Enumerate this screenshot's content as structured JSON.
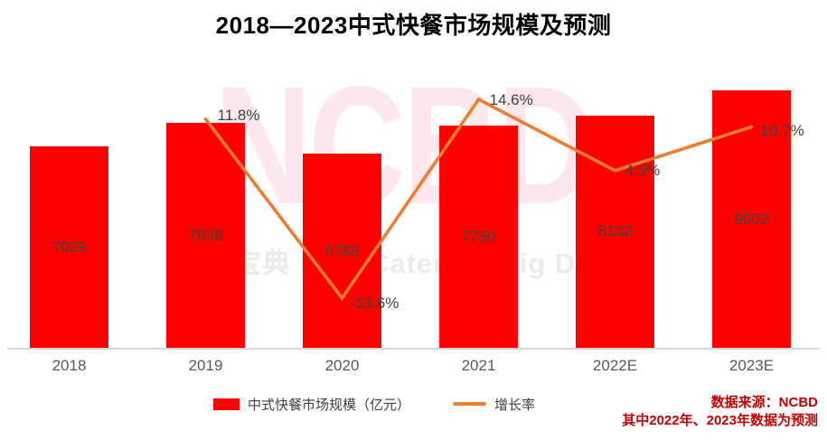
{
  "title": "2018—2023中式快餐市场规模及预测",
  "watermark": {
    "logo": "NCBD",
    "subtext": "餐宝典 New Catering Big Data"
  },
  "chart_data": {
    "type": "bar",
    "subtype": "bar-line-combo",
    "title": "2018—2023中式快餐市场规模及预测",
    "categories": [
      "2018",
      "2019",
      "2020",
      "2021",
      "2022E",
      "2023E"
    ],
    "series": [
      {
        "name": "中式快餐市场规模（亿元）",
        "kind": "bar",
        "color": "#FF0000",
        "values": [
          7029,
          7858,
          6788,
          7780,
          8132,
          9002
        ]
      },
      {
        "name": "增长率",
        "kind": "line",
        "color": "#ED7D31",
        "values": [
          null,
          11.8,
          -13.6,
          14.6,
          4.5,
          10.7
        ],
        "point_labels": [
          "",
          "11.8%",
          "-13.6%",
          "14.6%",
          "4.5%",
          "10.7%"
        ]
      }
    ],
    "xlabel": "",
    "ylabel": "",
    "ylim": [
      0,
      9500
    ],
    "grid": false,
    "axes_visible": false,
    "legend_position": "bottom",
    "value_labels_inside_bars": true
  },
  "legend": {
    "bar_label": "中式快餐市场规模（亿元）",
    "line_label": "增长率"
  },
  "source": {
    "line1": "数据来源：NCBD",
    "line2": "其中2022年、2023年数据为预测"
  },
  "colors": {
    "bar": "#FF0000",
    "line": "#ED7D31",
    "value_label": "#404040",
    "pct_label": "#404040",
    "axis_label": "#595959",
    "axis_line": "#D9D9D9",
    "source_text": "#C00000",
    "watermark_pink": "#FBE7ED",
    "watermark_gray": "#EBEBEB"
  }
}
